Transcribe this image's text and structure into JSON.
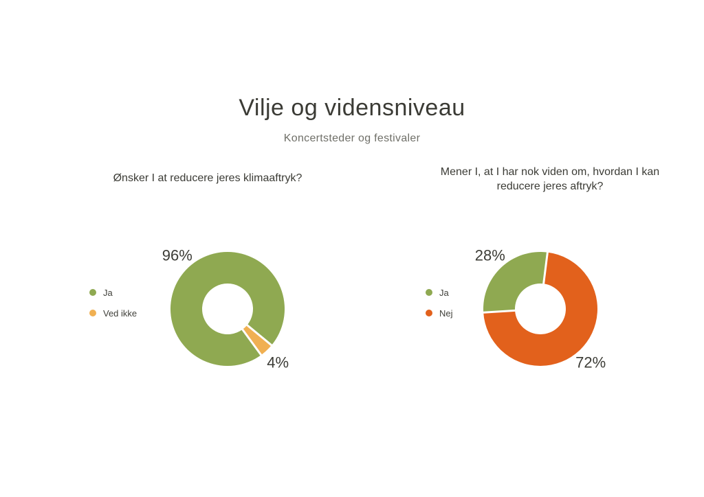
{
  "page": {
    "title": "Vilje og vidensniveau",
    "subtitle": "Koncertsteder og festivaler",
    "background": "#ffffff",
    "title_color": "#3b3b35",
    "subtitle_color": "#6f6f68"
  },
  "chart_data": [
    {
      "type": "pie",
      "donut": true,
      "title": "Ønsker I at reducere jeres klimaaftryk?",
      "legend_position": "left",
      "start_angle": 144,
      "categories": [
        "Ja",
        "Ved ikke"
      ],
      "values": [
        96,
        4
      ],
      "colors": [
        "#8FA951",
        "#F0B052"
      ],
      "data_labels": [
        "96%",
        "4%"
      ],
      "legend": [
        {
          "label": "Ja",
          "color": "#8FA951"
        },
        {
          "label": "Ved ikke",
          "color": "#F0B052"
        }
      ]
    },
    {
      "type": "pie",
      "donut": true,
      "title": "Mener I, at I har nok viden om, hvordan I kan reducere jeres aftryk?",
      "legend_position": "left",
      "start_angle": 266.4,
      "categories": [
        "Ja",
        "Nej"
      ],
      "values": [
        28,
        72
      ],
      "colors": [
        "#8FA951",
        "#E2611C"
      ],
      "data_labels": [
        "28%",
        "72%"
      ],
      "legend": [
        {
          "label": "Ja",
          "color": "#8FA951"
        },
        {
          "label": "Nej",
          "color": "#E2611C"
        }
      ]
    }
  ]
}
